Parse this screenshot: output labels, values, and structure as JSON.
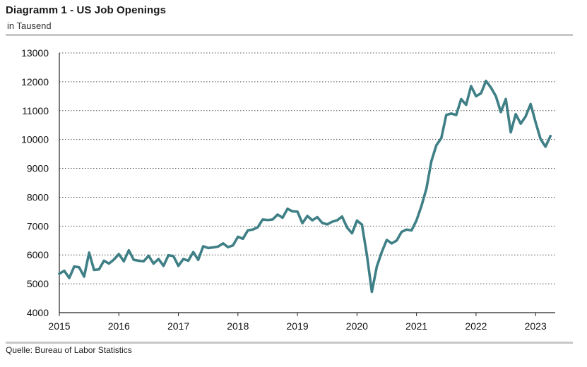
{
  "header": {
    "title": "Diagramm 1 - US Job Openings",
    "subtitle": "in Tausend"
  },
  "footer": {
    "source": "Quelle: Bureau of Labor Statistics"
  },
  "colors": {
    "line": "#3f7f86",
    "grid": "#555555",
    "axis": "#222222",
    "rule": "#c8c8c8"
  },
  "chart_data": {
    "type": "line",
    "title": "Diagramm 1 - US Job Openings",
    "subtitle": "in Tausend",
    "xlabel": "",
    "ylabel": "",
    "xlim": [
      2015.0,
      2023.33
    ],
    "ylim": [
      4000,
      13000
    ],
    "y_ticks": [
      "4000",
      "5000",
      "6000",
      "7000",
      "8000",
      "9000",
      "10000",
      "11000",
      "12000",
      "13000"
    ],
    "x_ticks": [
      "2015",
      "2016",
      "2017",
      "2018",
      "2019",
      "2020",
      "2021",
      "2022",
      "2023"
    ],
    "grid": "horizontal dotted",
    "legend": "none",
    "series": [
      {
        "name": "",
        "x": [
          "2015-01",
          "2015-02",
          "2015-03",
          "2015-04",
          "2015-05",
          "2015-06",
          "2015-07",
          "2015-08",
          "2015-09",
          "2015-10",
          "2015-11",
          "2015-12",
          "2016-01",
          "2016-02",
          "2016-03",
          "2016-04",
          "2016-05",
          "2016-06",
          "2016-07",
          "2016-08",
          "2016-09",
          "2016-10",
          "2016-11",
          "2016-12",
          "2017-01",
          "2017-02",
          "2017-03",
          "2017-04",
          "2017-05",
          "2017-06",
          "2017-07",
          "2017-08",
          "2017-09",
          "2017-10",
          "2017-11",
          "2017-12",
          "2018-01",
          "2018-02",
          "2018-03",
          "2018-04",
          "2018-05",
          "2018-06",
          "2018-07",
          "2018-08",
          "2018-09",
          "2018-10",
          "2018-11",
          "2018-12",
          "2019-01",
          "2019-02",
          "2019-03",
          "2019-04",
          "2019-05",
          "2019-06",
          "2019-07",
          "2019-08",
          "2019-09",
          "2019-10",
          "2019-11",
          "2019-12",
          "2020-01",
          "2020-02",
          "2020-03",
          "2020-04",
          "2020-05",
          "2020-06",
          "2020-07",
          "2020-08",
          "2020-09",
          "2020-10",
          "2020-11",
          "2020-12",
          "2021-01",
          "2021-02",
          "2021-03",
          "2021-04",
          "2021-05",
          "2021-06",
          "2021-07",
          "2021-08",
          "2021-09",
          "2021-10",
          "2021-11",
          "2021-12",
          "2022-01",
          "2022-02",
          "2022-03",
          "2022-04",
          "2022-05",
          "2022-06",
          "2022-07",
          "2022-08",
          "2022-09",
          "2022-10",
          "2022-11",
          "2022-12",
          "2023-01",
          "2023-02",
          "2023-03",
          "2023-04"
        ],
        "values": [
          5350,
          5450,
          5200,
          5600,
          5570,
          5250,
          6080,
          5480,
          5500,
          5800,
          5700,
          5840,
          6030,
          5780,
          6160,
          5830,
          5800,
          5780,
          5970,
          5700,
          5860,
          5620,
          5990,
          5960,
          5620,
          5860,
          5800,
          6100,
          5830,
          6300,
          6240,
          6260,
          6290,
          6400,
          6270,
          6330,
          6630,
          6560,
          6850,
          6880,
          6960,
          7230,
          7210,
          7230,
          7400,
          7290,
          7600,
          7510,
          7500,
          7100,
          7350,
          7200,
          7310,
          7110,
          7060,
          7150,
          7200,
          7330,
          6950,
          6750,
          7190,
          7050,
          6000,
          4720,
          5600,
          6100,
          6520,
          6400,
          6500,
          6800,
          6880,
          6850,
          7200,
          7700,
          8300,
          9250,
          9800,
          10050,
          10850,
          10900,
          10850,
          11400,
          11200,
          11850,
          11500,
          11600,
          12030,
          11800,
          11500,
          10950,
          11400,
          10250,
          10880,
          10550,
          10800,
          11230,
          10600,
          10020,
          9750,
          10120
        ]
      }
    ]
  }
}
